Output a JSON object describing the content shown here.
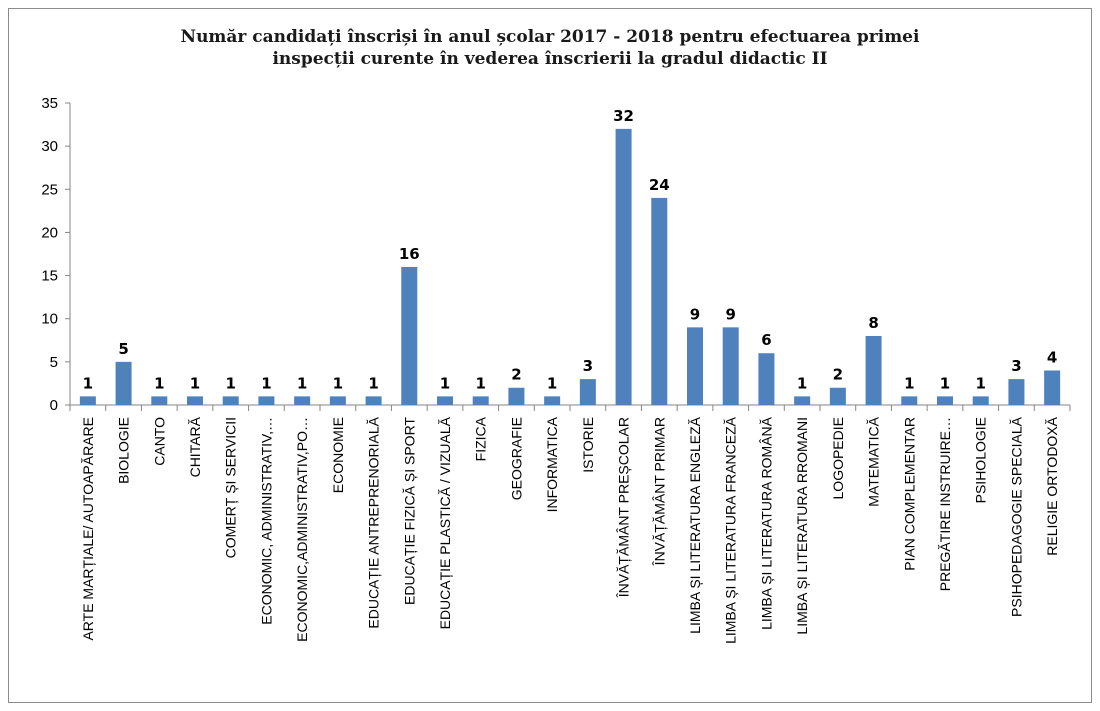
{
  "chart_data": {
    "type": "bar",
    "title_lines": [
      "Număr candidați înscriși în anul școlar 2017 - 2018 pentru efectuarea primei",
      "inspecții curente în vederea înscrierii la gradul didactic II"
    ],
    "xlabel": "",
    "ylabel": "",
    "ylim": [
      0,
      35
    ],
    "yticks": [
      0,
      5,
      10,
      15,
      20,
      25,
      30,
      35
    ],
    "grid": false,
    "legend": "none",
    "bar_color": "#4f81bd",
    "categories": [
      "ARTE MARȚIALE/ AUTOAPĂRARE",
      "BIOLOGIE",
      "CANTO",
      "CHITARĂ",
      "COMERȚ ȘI SERVICII",
      "ECONOMIC, ADMINISTRATIV,…",
      "ECONOMIC,ADMINISTRATIV,PO…",
      "ECONOMIE",
      "EDUCAȚIE ANTREPRENORIALĂ",
      "EDUCAȚIE FIZICĂ ȘI SPORT",
      "EDUCAȚIE PLASTICĂ / VIZUALĂ",
      "FIZICA",
      "GEOGRAFIE",
      "INFORMATICA",
      "ISTORIE",
      "ÎNVĂȚĂMÂNT PREȘCOLAR",
      "ÎNVĂȚĂMÂNT PRIMAR",
      "LIMBA ȘI LITERATURA ENGLEZĂ",
      "LIMBA ȘI LITERATURA FRANCEZĂ",
      "LIMBA ȘI LITERATURA ROMÂNĂ",
      "LIMBA ȘI LITERATURA RROMANI",
      "LOGOPEDIE",
      "MATEMATICĂ",
      "PIAN COMPLEMENTAR",
      "PREGĂTIRE INSTRUIRE…",
      "PSIHOLOGIE",
      "PSIHOPEDAGOGIE SPECIALĂ",
      "RELIGIE ORTODOXĂ"
    ],
    "values": [
      1,
      5,
      1,
      1,
      1,
      1,
      1,
      1,
      1,
      16,
      1,
      1,
      2,
      1,
      3,
      32,
      24,
      9,
      9,
      6,
      1,
      2,
      8,
      1,
      1,
      1,
      3,
      4
    ]
  }
}
